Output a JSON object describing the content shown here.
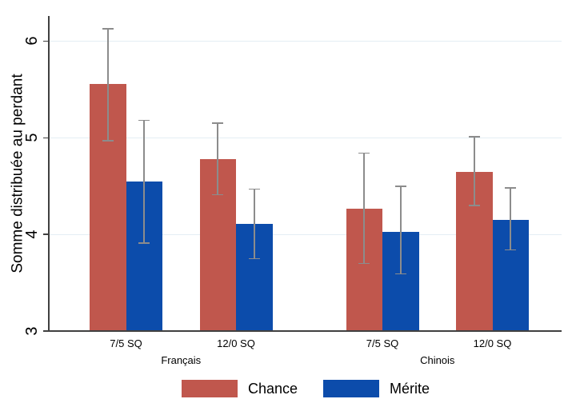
{
  "figure": {
    "background": "#ffffff"
  },
  "chart_data": {
    "type": "bar",
    "title": "",
    "xlabel": "",
    "ylabel": "Somme distribuée au perdant",
    "ylim": [
      3,
      6.26
    ],
    "yticks": [
      3,
      4,
      5,
      6
    ],
    "grid": true,
    "legend_position": "bottom",
    "categories": [
      "7/5 SQ",
      "12/0 SQ",
      "7/5 SQ",
      "12/0 SQ"
    ],
    "category_groups": [
      "Français",
      "Français",
      "Chinois",
      "Chinois"
    ],
    "group_labels": [
      "Français",
      "Chinois"
    ],
    "series": [
      {
        "name": "Chance",
        "color": "#c0574d",
        "values": [
          5.56,
          4.78,
          4.27,
          4.65
        ],
        "ci_low": [
          4.97,
          4.41,
          3.7,
          4.3
        ],
        "ci_high": [
          6.13,
          5.15,
          4.84,
          5.01
        ]
      },
      {
        "name": "Mérite",
        "color": "#0c4cab",
        "values": [
          4.55,
          4.11,
          4.03,
          4.15
        ],
        "ci_low": [
          3.91,
          3.75,
          3.59,
          3.84
        ],
        "ci_high": [
          5.18,
          4.47,
          4.5,
          4.48
        ]
      }
    ],
    "colors": {
      "error_bar": "#8c8c8c",
      "gridline": "#e4eef4",
      "axis": "#404040",
      "text": "#000000"
    }
  }
}
